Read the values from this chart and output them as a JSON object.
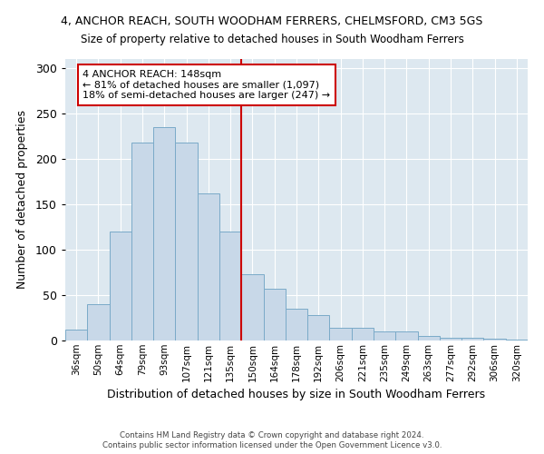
{
  "title": "4, ANCHOR REACH, SOUTH WOODHAM FERRERS, CHELMSFORD, CM3 5GS",
  "subtitle": "Size of property relative to detached houses in South Woodham Ferrers",
  "xlabel": "Distribution of detached houses by size in South Woodham Ferrers",
  "ylabel": "Number of detached properties",
  "categories": [
    "36sqm",
    "50sqm",
    "64sqm",
    "79sqm",
    "93sqm",
    "107sqm",
    "121sqm",
    "135sqm",
    "150sqm",
    "164sqm",
    "178sqm",
    "192sqm",
    "206sqm",
    "221sqm",
    "235sqm",
    "249sqm",
    "263sqm",
    "277sqm",
    "292sqm",
    "306sqm",
    "320sqm"
  ],
  "values": [
    12,
    40,
    120,
    218,
    235,
    218,
    162,
    120,
    73,
    57,
    35,
    28,
    14,
    14,
    10,
    10,
    5,
    3,
    3,
    2,
    1
  ],
  "bar_color": "#c8d8e8",
  "bar_edge_color": "#7aaac8",
  "vline_x": 7.5,
  "vline_color": "#cc0000",
  "annotation_text": "4 ANCHOR REACH: 148sqm\n← 81% of detached houses are smaller (1,097)\n18% of semi-detached houses are larger (247) →",
  "annotation_box_color": "#cc0000",
  "bg_color": "#dde8f0",
  "footer1": "Contains HM Land Registry data © Crown copyright and database right 2024.",
  "footer2": "Contains public sector information licensed under the Open Government Licence v3.0.",
  "ylim": [
    0,
    310
  ],
  "yticks": [
    0,
    50,
    100,
    150,
    200,
    250,
    300
  ]
}
